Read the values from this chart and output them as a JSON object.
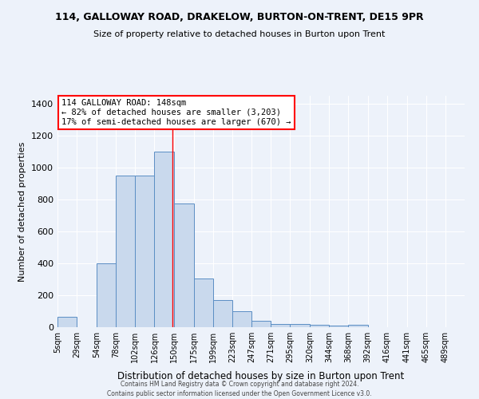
{
  "title": "114, GALLOWAY ROAD, DRAKELOW, BURTON-ON-TRENT, DE15 9PR",
  "subtitle": "Size of property relative to detached houses in Burton upon Trent",
  "xlabel": "Distribution of detached houses by size in Burton upon Trent",
  "ylabel": "Number of detached properties",
  "categories": [
    "5sqm",
    "29sqm",
    "54sqm",
    "78sqm",
    "102sqm",
    "126sqm",
    "150sqm",
    "175sqm",
    "199sqm",
    "223sqm",
    "247sqm",
    "271sqm",
    "295sqm",
    "320sqm",
    "344sqm",
    "368sqm",
    "392sqm",
    "416sqm",
    "441sqm",
    "465sqm",
    "489sqm"
  ],
  "values": [
    65,
    0,
    400,
    950,
    950,
    1100,
    775,
    305,
    170,
    100,
    40,
    20,
    20,
    15,
    8,
    15,
    0,
    0,
    0,
    0,
    0
  ],
  "bar_color": "#c9d9ed",
  "bar_edge_color": "#5b8ec4",
  "background_color": "#edf2fa",
  "grid_color": "#ffffff",
  "property_line_x": 148,
  "property_line_color": "red",
  "annotation_text": "114 GALLOWAY ROAD: 148sqm\n← 82% of detached houses are smaller (3,203)\n17% of semi-detached houses are larger (670) →",
  "annotation_box_color": "white",
  "annotation_box_edge_color": "red",
  "ylim": [
    0,
    1450
  ],
  "yticks": [
    0,
    200,
    400,
    600,
    800,
    1000,
    1200,
    1400
  ],
  "footer1": "Contains HM Land Registry data © Crown copyright and database right 2024.",
  "footer2": "Contains public sector information licensed under the Open Government Licence v3.0."
}
